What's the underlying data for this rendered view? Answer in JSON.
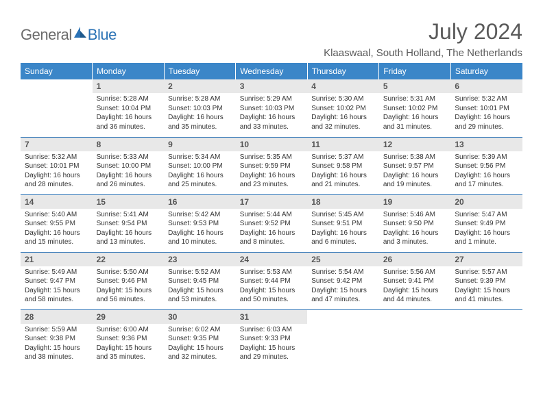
{
  "logo": {
    "text1": "General",
    "text2": "Blue"
  },
  "title": "July 2024",
  "location": "Klaaswaal, South Holland, The Netherlands",
  "colors": {
    "header_bg": "#3b86c8",
    "header_text": "#ffffff",
    "daynum_bg": "#e8e8e8",
    "daynum_text": "#555555",
    "body_text": "#333333",
    "border": "#2a72b5",
    "logo_gray": "#6b6b6b",
    "logo_blue": "#2a72b5"
  },
  "day_headers": [
    "Sunday",
    "Monday",
    "Tuesday",
    "Wednesday",
    "Thursday",
    "Friday",
    "Saturday"
  ],
  "weeks": [
    [
      null,
      {
        "n": "1",
        "sr": "5:28 AM",
        "ss": "10:04 PM",
        "dl": "16 hours and 36 minutes."
      },
      {
        "n": "2",
        "sr": "5:28 AM",
        "ss": "10:03 PM",
        "dl": "16 hours and 35 minutes."
      },
      {
        "n": "3",
        "sr": "5:29 AM",
        "ss": "10:03 PM",
        "dl": "16 hours and 33 minutes."
      },
      {
        "n": "4",
        "sr": "5:30 AM",
        "ss": "10:02 PM",
        "dl": "16 hours and 32 minutes."
      },
      {
        "n": "5",
        "sr": "5:31 AM",
        "ss": "10:02 PM",
        "dl": "16 hours and 31 minutes."
      },
      {
        "n": "6",
        "sr": "5:32 AM",
        "ss": "10:01 PM",
        "dl": "16 hours and 29 minutes."
      }
    ],
    [
      {
        "n": "7",
        "sr": "5:32 AM",
        "ss": "10:01 PM",
        "dl": "16 hours and 28 minutes."
      },
      {
        "n": "8",
        "sr": "5:33 AM",
        "ss": "10:00 PM",
        "dl": "16 hours and 26 minutes."
      },
      {
        "n": "9",
        "sr": "5:34 AM",
        "ss": "10:00 PM",
        "dl": "16 hours and 25 minutes."
      },
      {
        "n": "10",
        "sr": "5:35 AM",
        "ss": "9:59 PM",
        "dl": "16 hours and 23 minutes."
      },
      {
        "n": "11",
        "sr": "5:37 AM",
        "ss": "9:58 PM",
        "dl": "16 hours and 21 minutes."
      },
      {
        "n": "12",
        "sr": "5:38 AM",
        "ss": "9:57 PM",
        "dl": "16 hours and 19 minutes."
      },
      {
        "n": "13",
        "sr": "5:39 AM",
        "ss": "9:56 PM",
        "dl": "16 hours and 17 minutes."
      }
    ],
    [
      {
        "n": "14",
        "sr": "5:40 AM",
        "ss": "9:55 PM",
        "dl": "16 hours and 15 minutes."
      },
      {
        "n": "15",
        "sr": "5:41 AM",
        "ss": "9:54 PM",
        "dl": "16 hours and 13 minutes."
      },
      {
        "n": "16",
        "sr": "5:42 AM",
        "ss": "9:53 PM",
        "dl": "16 hours and 10 minutes."
      },
      {
        "n": "17",
        "sr": "5:44 AM",
        "ss": "9:52 PM",
        "dl": "16 hours and 8 minutes."
      },
      {
        "n": "18",
        "sr": "5:45 AM",
        "ss": "9:51 PM",
        "dl": "16 hours and 6 minutes."
      },
      {
        "n": "19",
        "sr": "5:46 AM",
        "ss": "9:50 PM",
        "dl": "16 hours and 3 minutes."
      },
      {
        "n": "20",
        "sr": "5:47 AM",
        "ss": "9:49 PM",
        "dl": "16 hours and 1 minute."
      }
    ],
    [
      {
        "n": "21",
        "sr": "5:49 AM",
        "ss": "9:47 PM",
        "dl": "15 hours and 58 minutes."
      },
      {
        "n": "22",
        "sr": "5:50 AM",
        "ss": "9:46 PM",
        "dl": "15 hours and 56 minutes."
      },
      {
        "n": "23",
        "sr": "5:52 AM",
        "ss": "9:45 PM",
        "dl": "15 hours and 53 minutes."
      },
      {
        "n": "24",
        "sr": "5:53 AM",
        "ss": "9:44 PM",
        "dl": "15 hours and 50 minutes."
      },
      {
        "n": "25",
        "sr": "5:54 AM",
        "ss": "9:42 PM",
        "dl": "15 hours and 47 minutes."
      },
      {
        "n": "26",
        "sr": "5:56 AM",
        "ss": "9:41 PM",
        "dl": "15 hours and 44 minutes."
      },
      {
        "n": "27",
        "sr": "5:57 AM",
        "ss": "9:39 PM",
        "dl": "15 hours and 41 minutes."
      }
    ],
    [
      {
        "n": "28",
        "sr": "5:59 AM",
        "ss": "9:38 PM",
        "dl": "15 hours and 38 minutes."
      },
      {
        "n": "29",
        "sr": "6:00 AM",
        "ss": "9:36 PM",
        "dl": "15 hours and 35 minutes."
      },
      {
        "n": "30",
        "sr": "6:02 AM",
        "ss": "9:35 PM",
        "dl": "15 hours and 32 minutes."
      },
      {
        "n": "31",
        "sr": "6:03 AM",
        "ss": "9:33 PM",
        "dl": "15 hours and 29 minutes."
      },
      null,
      null,
      null
    ]
  ],
  "labels": {
    "sunrise": "Sunrise:",
    "sunset": "Sunset:",
    "daylight": "Daylight:"
  }
}
